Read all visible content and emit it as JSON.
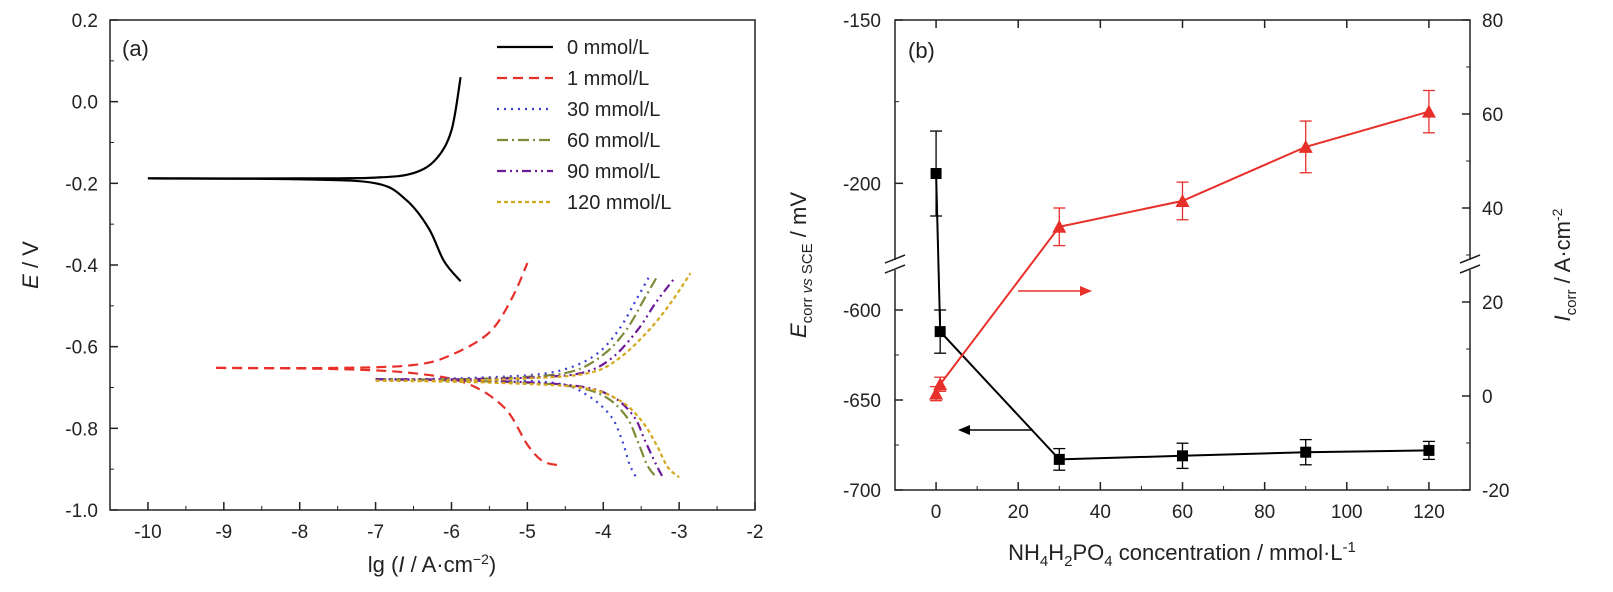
{
  "chart_data": [
    {
      "type": "line",
      "panel_label": "(a)",
      "xlabel": {
        "pre": "lg (",
        "var": "I",
        "mid": " / A·cm",
        "sup": "−2",
        "post": ")"
      },
      "ylabel": {
        "var": "E",
        "post": " / V"
      },
      "xlim": [
        -10.5,
        -2
      ],
      "ylim": [
        -1.0,
        0.2
      ],
      "xticks": [
        -10,
        -9,
        -8,
        -7,
        -6,
        -5,
        -4,
        -3,
        -2
      ],
      "yticks": [
        0.2,
        0.0,
        -0.2,
        -0.4,
        -0.6,
        -0.8,
        -1.0
      ],
      "xtick_labels": [
        "-10",
        "-9",
        "-8",
        "-7",
        "-6",
        "-5",
        "-4",
        "-3",
        "-2"
      ],
      "ytick_labels": [
        "0.2",
        "0.0",
        "-0.2",
        "-0.4",
        "-0.6",
        "-0.8",
        "-1.0"
      ],
      "legend_position": "top-right",
      "series": [
        {
          "name": "0 mmol/L",
          "color": "#000000",
          "dash": "",
          "upper": [
            [
              -10,
              -0.188
            ],
            [
              -8,
              -0.188
            ],
            [
              -7,
              -0.186
            ],
            [
              -6.5,
              -0.175
            ],
            [
              -6.2,
              -0.14
            ],
            [
              -6.0,
              -0.07
            ],
            [
              -5.88,
              0.06
            ]
          ],
          "lower": [
            [
              -10,
              -0.188
            ],
            [
              -8,
              -0.19
            ],
            [
              -7,
              -0.2
            ],
            [
              -6.6,
              -0.24
            ],
            [
              -6.3,
              -0.31
            ],
            [
              -6.1,
              -0.39
            ],
            [
              -5.88,
              -0.44
            ]
          ]
        },
        {
          "name": "1 mmol/L",
          "color": "#e8302a",
          "dash": "10,6",
          "upper": [
            [
              -9.1,
              -0.652
            ],
            [
              -7.5,
              -0.652
            ],
            [
              -6.5,
              -0.645
            ],
            [
              -6.0,
              -0.62
            ],
            [
              -5.5,
              -0.565
            ],
            [
              -5.2,
              -0.48
            ],
            [
              -5.0,
              -0.395
            ]
          ],
          "lower": [
            [
              -9.1,
              -0.652
            ],
            [
              -7.5,
              -0.655
            ],
            [
              -6.5,
              -0.665
            ],
            [
              -5.8,
              -0.69
            ],
            [
              -5.3,
              -0.75
            ],
            [
              -5.0,
              -0.84
            ],
            [
              -4.8,
              -0.88
            ],
            [
              -4.6,
              -0.89
            ]
          ]
        },
        {
          "name": "30 mmol/L",
          "color": "#3a3fd6",
          "dash": "2,5",
          "upper": [
            [
              -6.8,
              -0.68
            ],
            [
              -6.0,
              -0.678
            ],
            [
              -5.0,
              -0.67
            ],
            [
              -4.5,
              -0.655
            ],
            [
              -4.1,
              -0.62
            ],
            [
              -3.8,
              -0.56
            ],
            [
              -3.55,
              -0.48
            ],
            [
              -3.4,
              -0.43
            ]
          ],
          "lower": [
            [
              -6.8,
              -0.68
            ],
            [
              -5.5,
              -0.682
            ],
            [
              -4.6,
              -0.69
            ],
            [
              -4.2,
              -0.72
            ],
            [
              -3.9,
              -0.77
            ],
            [
              -3.75,
              -0.83
            ],
            [
              -3.65,
              -0.89
            ],
            [
              -3.55,
              -0.925
            ]
          ]
        },
        {
          "name": "60 mmol/L",
          "color": "#7f8b3a",
          "dash": "11,4,2,4",
          "upper": [
            [
              -7.0,
              -0.68
            ],
            [
              -6.0,
              -0.68
            ],
            [
              -5.0,
              -0.674
            ],
            [
              -4.4,
              -0.66
            ],
            [
              -4.0,
              -0.62
            ],
            [
              -3.7,
              -0.56
            ],
            [
              -3.45,
              -0.48
            ],
            [
              -3.28,
              -0.425
            ]
          ],
          "lower": [
            [
              -7.0,
              -0.68
            ],
            [
              -5.5,
              -0.685
            ],
            [
              -4.5,
              -0.695
            ],
            [
              -4.0,
              -0.72
            ],
            [
              -3.7,
              -0.77
            ],
            [
              -3.55,
              -0.83
            ],
            [
              -3.42,
              -0.89
            ],
            [
              -3.3,
              -0.92
            ]
          ]
        },
        {
          "name": "90 mmol/L",
          "color": "#6b1a9a",
          "dash": "9,4,2,4,2,4",
          "upper": [
            [
              -7.0,
              -0.68
            ],
            [
              -6.0,
              -0.68
            ],
            [
              -5.0,
              -0.676
            ],
            [
              -4.3,
              -0.665
            ],
            [
              -3.9,
              -0.63
            ],
            [
              -3.55,
              -0.56
            ],
            [
              -3.3,
              -0.49
            ],
            [
              -3.05,
              -0.43
            ]
          ],
          "lower": [
            [
              -7.0,
              -0.68
            ],
            [
              -5.5,
              -0.684
            ],
            [
              -4.4,
              -0.695
            ],
            [
              -3.9,
              -0.72
            ],
            [
              -3.6,
              -0.77
            ],
            [
              -3.45,
              -0.83
            ],
            [
              -3.3,
              -0.89
            ],
            [
              -3.2,
              -0.925
            ]
          ]
        },
        {
          "name": "120 mmol/L",
          "color": "#d4a81c",
          "dash": "4,3",
          "upper": [
            [
              -7.0,
              -0.683
            ],
            [
              -6.0,
              -0.683
            ],
            [
              -5.0,
              -0.678
            ],
            [
              -4.2,
              -0.665
            ],
            [
              -3.8,
              -0.63
            ],
            [
              -3.4,
              -0.56
            ],
            [
              -3.1,
              -0.49
            ],
            [
              -2.85,
              -0.42
            ]
          ],
          "lower": [
            [
              -7.0,
              -0.683
            ],
            [
              -5.5,
              -0.688
            ],
            [
              -4.3,
              -0.7
            ],
            [
              -3.8,
              -0.73
            ],
            [
              -3.5,
              -0.78
            ],
            [
              -3.3,
              -0.84
            ],
            [
              -3.15,
              -0.895
            ],
            [
              -3.0,
              -0.92
            ]
          ]
        }
      ]
    },
    {
      "type": "scatter",
      "panel_label": "(b)",
      "xlabel": {
        "parts": [
          [
            "NH",
            ""
          ],
          [
            "4",
            "sub"
          ],
          [
            "H",
            ""
          ],
          [
            "2",
            "sub"
          ],
          [
            "PO",
            ""
          ],
          [
            "4",
            "sub"
          ],
          [
            " concentration / mmol·L",
            ""
          ],
          [
            "-1",
            "sup"
          ]
        ]
      },
      "ylabel_left": {
        "var": "E",
        "sub": "corr ",
        "sub_it": "vs",
        "sub2": " SCE",
        "post": " / mV"
      },
      "ylabel_right": {
        "var": "I",
        "sub": "corr",
        "mid": " / A·cm",
        "sup": "-2"
      },
      "xlim": [
        -10,
        130
      ],
      "xticks": [
        0,
        20,
        40,
        60,
        80,
        100,
        120
      ],
      "xtick_labels": [
        "0",
        "20",
        "40",
        "60",
        "80",
        "100",
        "120"
      ],
      "ylim_left_upper": [
        -225,
        -150
      ],
      "ylim_left_lower": [
        -700,
        -575
      ],
      "yticks_left": [
        -150,
        -200,
        -600,
        -650,
        -700
      ],
      "ytick_labels_left": [
        "-150",
        "-200",
        "-600",
        "-650",
        "-700"
      ],
      "ylim_right_upper": [
        28,
        80
      ],
      "ylim_right_lower": [
        -20,
        28
      ],
      "yticks_right": [
        80,
        60,
        40,
        20,
        0,
        -20
      ],
      "ytick_labels_right": [
        "80",
        "60",
        "40",
        "20",
        "0",
        "-20"
      ],
      "series": [
        {
          "name": "",
          "axis": "left",
          "color": "#000000",
          "marker": "square",
          "x": [
            0,
            1,
            30,
            60,
            90,
            120
          ],
          "y": [
            -197,
            -612,
            -683,
            -681,
            -679,
            -678
          ],
          "err": [
            13,
            12,
            6,
            7,
            7,
            5
          ]
        },
        {
          "name": "",
          "axis": "right",
          "color": "#e8302a",
          "marker": "triangle",
          "x": [
            0,
            1,
            30,
            60,
            90,
            120
          ],
          "y": [
            0.5,
            2.5,
            36,
            41.5,
            53,
            60.5
          ],
          "err": [
            1.5,
            1.5,
            4,
            4,
            5.5,
            4.5
          ]
        }
      ],
      "annotations": [
        {
          "type": "arrow",
          "direction": "left",
          "color": "#000000",
          "points_to": "left axis"
        },
        {
          "type": "arrow",
          "direction": "right",
          "color": "#e8302a",
          "points_to": "right axis"
        }
      ]
    }
  ]
}
